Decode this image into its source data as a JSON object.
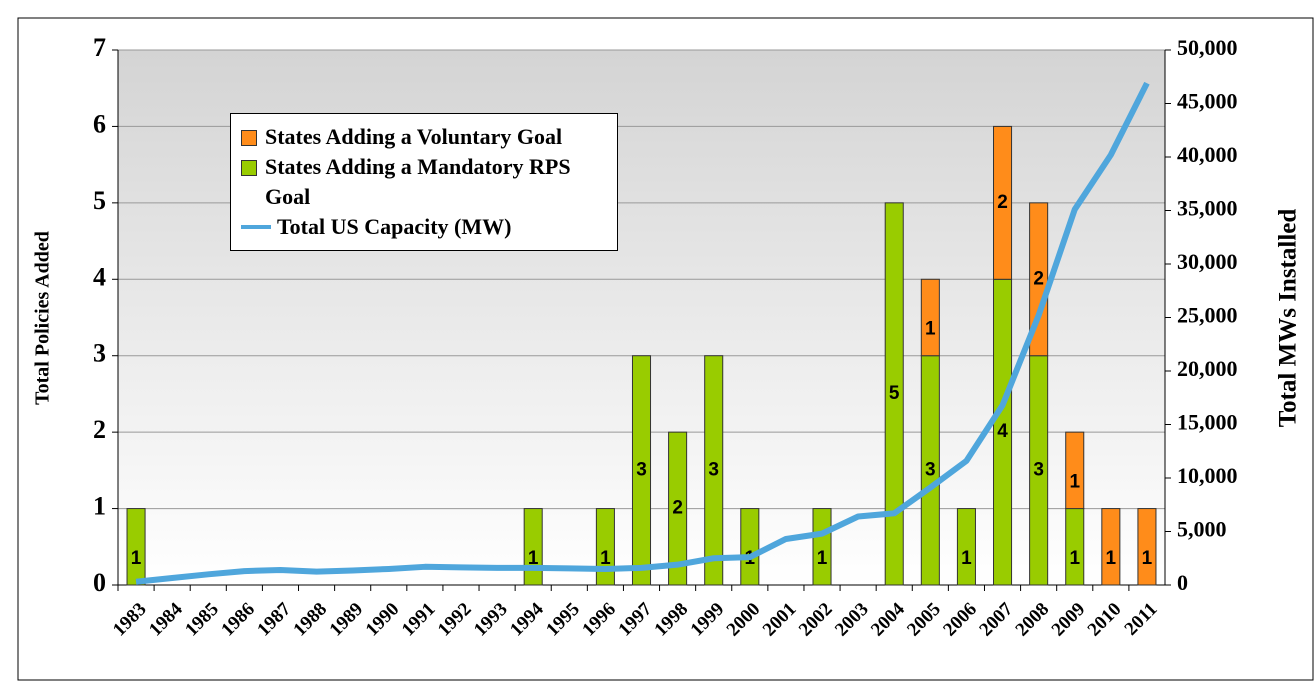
{
  "chart_data": {
    "type": "bar",
    "categories": [
      "1983",
      "1984",
      "1985",
      "1986",
      "1987",
      "1988",
      "1989",
      "1990",
      "1991",
      "1992",
      "1993",
      "1994",
      "1995",
      "1996",
      "1997",
      "1998",
      "1999",
      "2000",
      "2001",
      "2002",
      "2003",
      "2004",
      "2005",
      "2006",
      "2007",
      "2008",
      "2009",
      "2010",
      "2011"
    ],
    "series": [
      {
        "name": "States Adding a Voluntary Goal",
        "color": "#ff8c1a",
        "type": "bar",
        "values": [
          null,
          null,
          null,
          null,
          null,
          null,
          null,
          null,
          null,
          null,
          null,
          null,
          null,
          null,
          null,
          null,
          null,
          null,
          null,
          null,
          null,
          null,
          1,
          null,
          2,
          2,
          1,
          1,
          1
        ]
      },
      {
        "name": "States Adding a Mandatory RPS Goal",
        "color": "#99cc00",
        "type": "bar",
        "values": [
          1,
          null,
          null,
          null,
          null,
          null,
          null,
          null,
          null,
          null,
          null,
          1,
          null,
          1,
          3,
          2,
          3,
          1,
          null,
          1,
          null,
          5,
          3,
          1,
          4,
          3,
          1,
          null,
          null
        ]
      },
      {
        "name": "Total US Capacity (MW)",
        "color": "#4fa6dc",
        "type": "line",
        "axis": "y2",
        "values": [
          300,
          650,
          1000,
          1300,
          1400,
          1250,
          1350,
          1500,
          1700,
          1650,
          1600,
          1600,
          1550,
          1500,
          1600,
          1900,
          2500,
          2600,
          4300,
          4800,
          6400,
          6700,
          9100,
          11600,
          16800,
          25200,
          35100,
          40200,
          46900
        ]
      }
    ],
    "ylabel": "Total Policies Added",
    "y2label": "Total MWs Installed",
    "ylim": [
      0,
      7
    ],
    "yticks": [
      0,
      1,
      2,
      3,
      4,
      5,
      6,
      7
    ],
    "y2lim": [
      0,
      50000
    ],
    "y2ticks": [
      0,
      {
        "value": 5000,
        "label": "5,000"
      },
      {
        "value": 10000,
        "label": "10,000"
      },
      {
        "value": 15000,
        "label": "15,000"
      },
      {
        "value": 20000,
        "label": "20,000"
      },
      {
        "value": 25000,
        "label": "25,000"
      },
      {
        "value": 30000,
        "label": "30,000"
      },
      {
        "value": 35000,
        "label": "35,000"
      },
      {
        "value": 40000,
        "label": "40,000"
      },
      {
        "value": 45000,
        "label": "45,000"
      },
      {
        "value": 50000,
        "label": "50,000"
      }
    ],
    "grid": true
  }
}
